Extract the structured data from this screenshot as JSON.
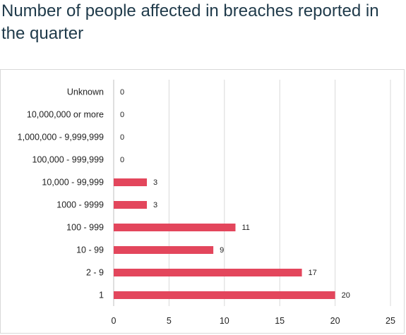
{
  "title": "Number of people affected in breaches reported in the quarter",
  "chart_data": {
    "type": "bar",
    "orientation": "horizontal",
    "title": "Number of people affected in breaches reported in the quarter",
    "xlabel": "",
    "ylabel": "",
    "categories": [
      "Unknown",
      "10,000,000 or more",
      "1,000,000 - 9,999,999",
      "100,000 - 999,999",
      "10,000 - 99,999",
      "1000 - 9999",
      "100 - 999",
      "10 - 99",
      "2 - 9",
      "1"
    ],
    "values": [
      0,
      0,
      0,
      0,
      3,
      3,
      11,
      9,
      17,
      20
    ],
    "xlim": [
      0,
      25
    ],
    "xticks": [
      0,
      5,
      10,
      15,
      20,
      25
    ],
    "grid": "vertical",
    "legend": "none",
    "bar_color": "#e3465c",
    "gridline_color": "#d9d9d9"
  }
}
